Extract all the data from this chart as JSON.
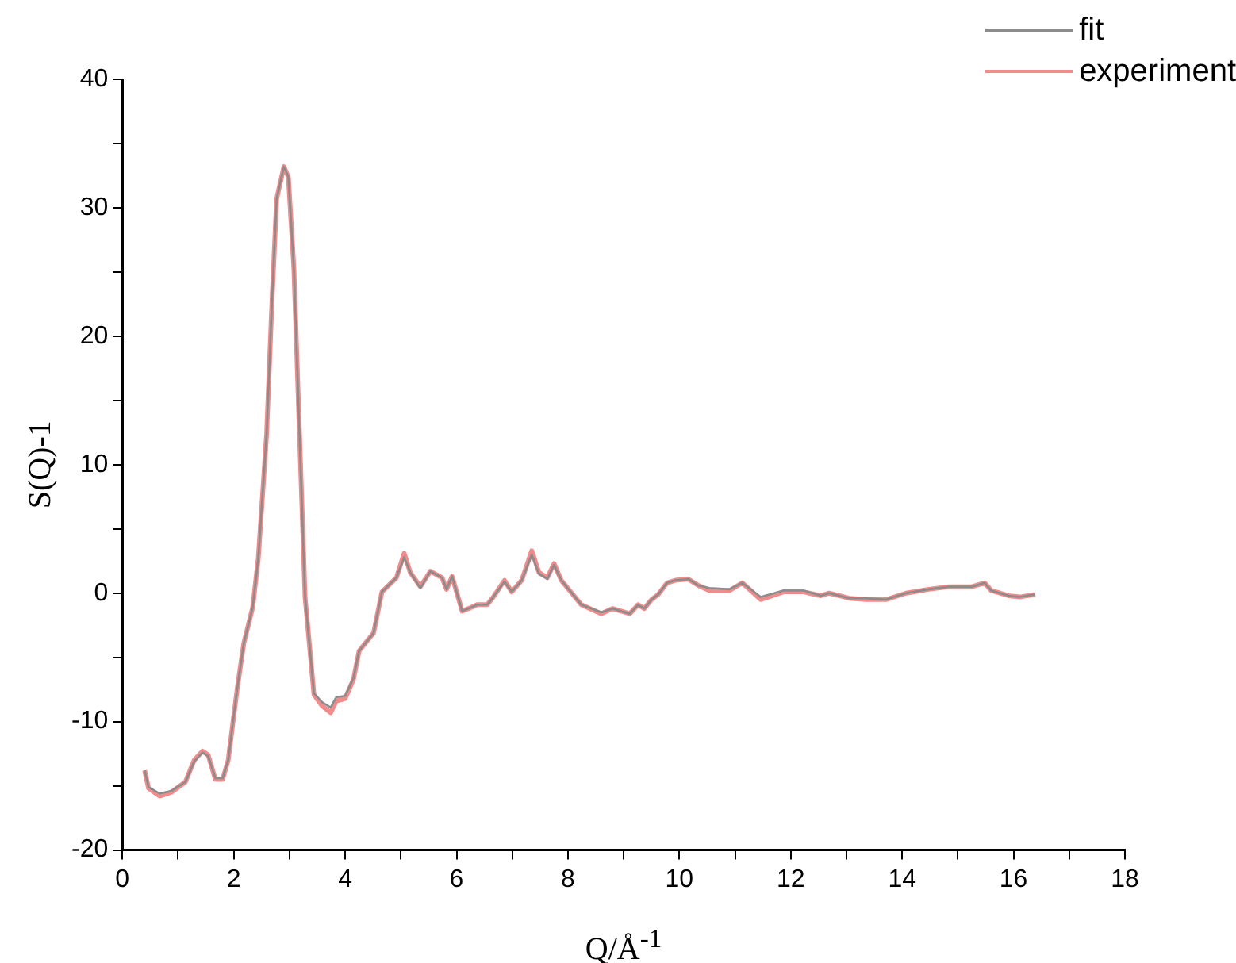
{
  "chart_data": {
    "type": "line",
    "xlabel": "Q/Å$^{-1}$",
    "ylabel": "S(Q)-1",
    "x": [
      0.4,
      0.47,
      0.67,
      0.88,
      1.13,
      1.29,
      1.44,
      1.54,
      1.67,
      1.8,
      1.9,
      2.06,
      2.18,
      2.34,
      2.44,
      2.59,
      2.69,
      2.77,
      2.9,
      2.98,
      3.08,
      3.18,
      3.28,
      3.44,
      3.59,
      3.74,
      3.84,
      4.0,
      4.15,
      4.25,
      4.51,
      4.66,
      4.92,
      5.06,
      5.17,
      5.35,
      5.53,
      5.74,
      5.82,
      5.92,
      6.1,
      6.27,
      6.37,
      6.55,
      6.66,
      6.86,
      6.99,
      7.17,
      7.35,
      7.48,
      7.63,
      7.75,
      7.88,
      8.24,
      8.6,
      8.8,
      9.11,
      9.26,
      9.37,
      9.5,
      9.62,
      9.78,
      9.93,
      10.16,
      10.34,
      10.54,
      10.9,
      11.13,
      11.46,
      11.87,
      12.23,
      12.54,
      12.69,
      13.05,
      13.35,
      13.71,
      14.07,
      14.48,
      14.84,
      15.25,
      15.48,
      15.6,
      15.91,
      16.11,
      16.39
    ],
    "series": [
      {
        "name": "fit",
        "color": "#8c8c8c",
        "values": [
          -13.8,
          -15.1,
          -15.6,
          -15.4,
          -14.7,
          -13.1,
          -12.4,
          -12.7,
          -14.4,
          -14.4,
          -13.0,
          -7.5,
          -3.9,
          -1.1,
          2.7,
          12.4,
          23.1,
          30.7,
          33.2,
          32.4,
          25.2,
          12.4,
          -0.3,
          -7.8,
          -8.5,
          -8.9,
          -8.1,
          -8.0,
          -6.6,
          -4.5,
          -3.1,
          0.1,
          1.2,
          2.8,
          1.6,
          0.4,
          1.7,
          1.2,
          0.3,
          1.3,
          -1.4,
          -1.1,
          -0.9,
          -0.9,
          -0.3,
          0.9,
          0.1,
          1.0,
          3.0,
          1.5,
          1.1,
          2.2,
          1.0,
          -0.9,
          -1.5,
          -1.2,
          -1.6,
          -0.9,
          -1.2,
          -0.5,
          -0.1,
          0.8,
          1.0,
          1.1,
          0.6,
          0.4,
          0.3,
          0.8,
          -0.3,
          0.2,
          0.2,
          -0.2,
          0.0,
          -0.4,
          -0.4,
          -0.5,
          0.0,
          0.3,
          0.5,
          0.5,
          0.8,
          0.2,
          -0.2,
          -0.3,
          -0.1
        ]
      },
      {
        "name": "experiment",
        "color": "#f08c8c",
        "values": [
          -13.8,
          -15.2,
          -15.8,
          -15.5,
          -14.7,
          -13.0,
          -12.3,
          -12.6,
          -14.5,
          -14.5,
          -13.0,
          -7.5,
          -3.9,
          -1.1,
          2.7,
          12.4,
          23.1,
          30.7,
          33.2,
          32.4,
          25.2,
          12.4,
          -0.3,
          -7.9,
          -8.8,
          -9.3,
          -8.4,
          -8.2,
          -6.7,
          -4.5,
          -3.1,
          0.1,
          1.2,
          3.1,
          1.6,
          0.5,
          1.7,
          1.2,
          0.3,
          1.3,
          -1.4,
          -1.1,
          -0.9,
          -0.9,
          -0.3,
          1.0,
          0.1,
          1.0,
          3.3,
          1.6,
          1.2,
          2.3,
          1.0,
          -0.9,
          -1.6,
          -1.2,
          -1.6,
          -0.9,
          -1.2,
          -0.5,
          -0.1,
          0.8,
          1.0,
          1.1,
          0.6,
          0.2,
          0.2,
          0.8,
          -0.5,
          0.1,
          0.1,
          -0.2,
          0.0,
          -0.4,
          -0.5,
          -0.5,
          0.0,
          0.3,
          0.5,
          0.5,
          0.8,
          0.2,
          -0.2,
          -0.3,
          -0.1
        ]
      }
    ],
    "xlim": [
      0,
      18
    ],
    "xticks": [
      0,
      {
        "value": 1,
        "label": null
      },
      2,
      {
        "value": 3,
        "label": null
      },
      4,
      {
        "value": 5,
        "label": null
      },
      6,
      {
        "value": 7,
        "label": null
      },
      8,
      {
        "value": 9,
        "label": null
      },
      10,
      {
        "value": 11,
        "label": null
      },
      12,
      {
        "value": 13,
        "label": null
      },
      14,
      {
        "value": 15,
        "label": null
      },
      16,
      {
        "value": 17,
        "label": null
      },
      18
    ],
    "ylim": [
      -20,
      40
    ],
    "yticks": [
      -20,
      {
        "value": -15,
        "label": null
      },
      -10,
      {
        "value": -5,
        "label": null
      },
      0,
      {
        "value": 5,
        "label": null
      },
      10,
      {
        "value": 15,
        "label": null
      },
      20,
      {
        "value": 25,
        "label": null
      },
      30,
      {
        "value": 35,
        "label": null
      },
      40
    ],
    "grid": false,
    "legend": "top right",
    "marker": "none",
    "line_style": "solid"
  }
}
